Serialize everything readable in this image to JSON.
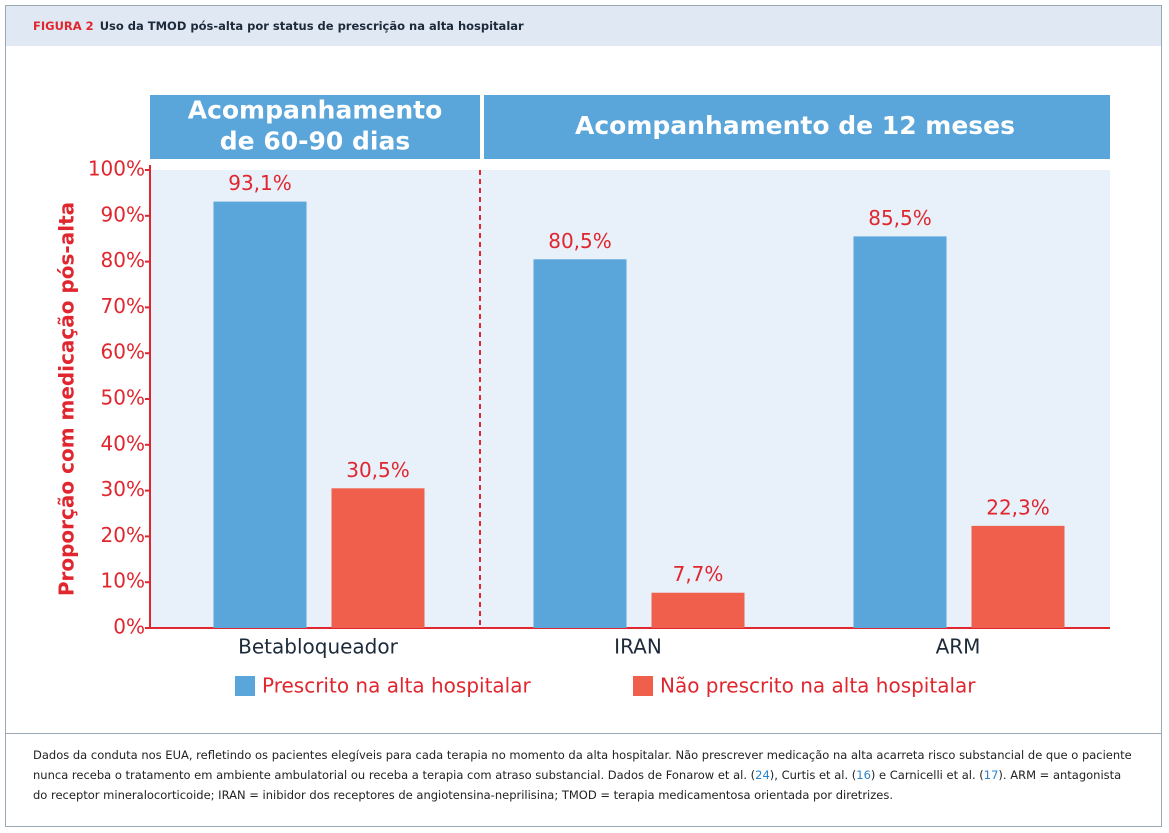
{
  "figure_label": "FIGURA 2",
  "figure_title": "Uso da TMOD pós-alta por status de prescrição na alta hospitalar",
  "chart_data": {
    "type": "bar",
    "panels": [
      {
        "title_lines": [
          "Acompanhamento",
          "de 60-90 dias"
        ]
      },
      {
        "title_lines": [
          "Acompanhamento de 12 meses"
        ]
      }
    ],
    "ylabel": "Proporção com medicação pós-alta",
    "categories": [
      "Betabloqueador",
      "IRAN",
      "ARM"
    ],
    "series": [
      {
        "name": "Prescrito na alta hospitalar",
        "color": "#5aa5da",
        "values": [
          93.1,
          80.5,
          85.5
        ],
        "value_labels": [
          "93,1%",
          "80,5%",
          "85,5%"
        ]
      },
      {
        "name": "Não prescrito na alta hospitalar",
        "color": "#ef5f4b",
        "values": [
          30.5,
          7.7,
          22.3
        ],
        "value_labels": [
          "30,5%",
          "7,7%",
          "22,3%"
        ]
      }
    ],
    "ylim": [
      0,
      100
    ],
    "yticks": [
      {
        "value": 0,
        "label": "0%"
      },
      {
        "value": 10,
        "label": "10%"
      },
      {
        "value": 20,
        "label": "20%"
      },
      {
        "value": 30,
        "label": "30%"
      },
      {
        "value": 40,
        "label": "40%"
      },
      {
        "value": 50,
        "label": "50%"
      },
      {
        "value": 60,
        "label": "60%"
      },
      {
        "value": 70,
        "label": "70%"
      },
      {
        "value": 80,
        "label": "80%"
      },
      {
        "value": 90,
        "label": "90%"
      },
      {
        "value": 100,
        "label": "100%"
      }
    ]
  },
  "caption": [
    "Dados da conduta nos EUA, refletindo os pacientes elegíveis para cada terapia no momento da alta hospitalar. Não prescrever medicação na alta acarreta risco substancial de que o paciente nunca receba o tratamento em ambiente ambulatorial ou receba a terapia com atraso substancial. Dados de Fonarow et al. (",
    "24",
    "), Curtis et al. (",
    "16",
    ") e Carnicelli et al. (",
    "17",
    "). ARM = antagonista do receptor mineralocorticoide; IRAN = inibidor dos receptores de angiotensina-neprilisina; TMOD = terapia medicamentosa orientada por diretrizes."
  ]
}
